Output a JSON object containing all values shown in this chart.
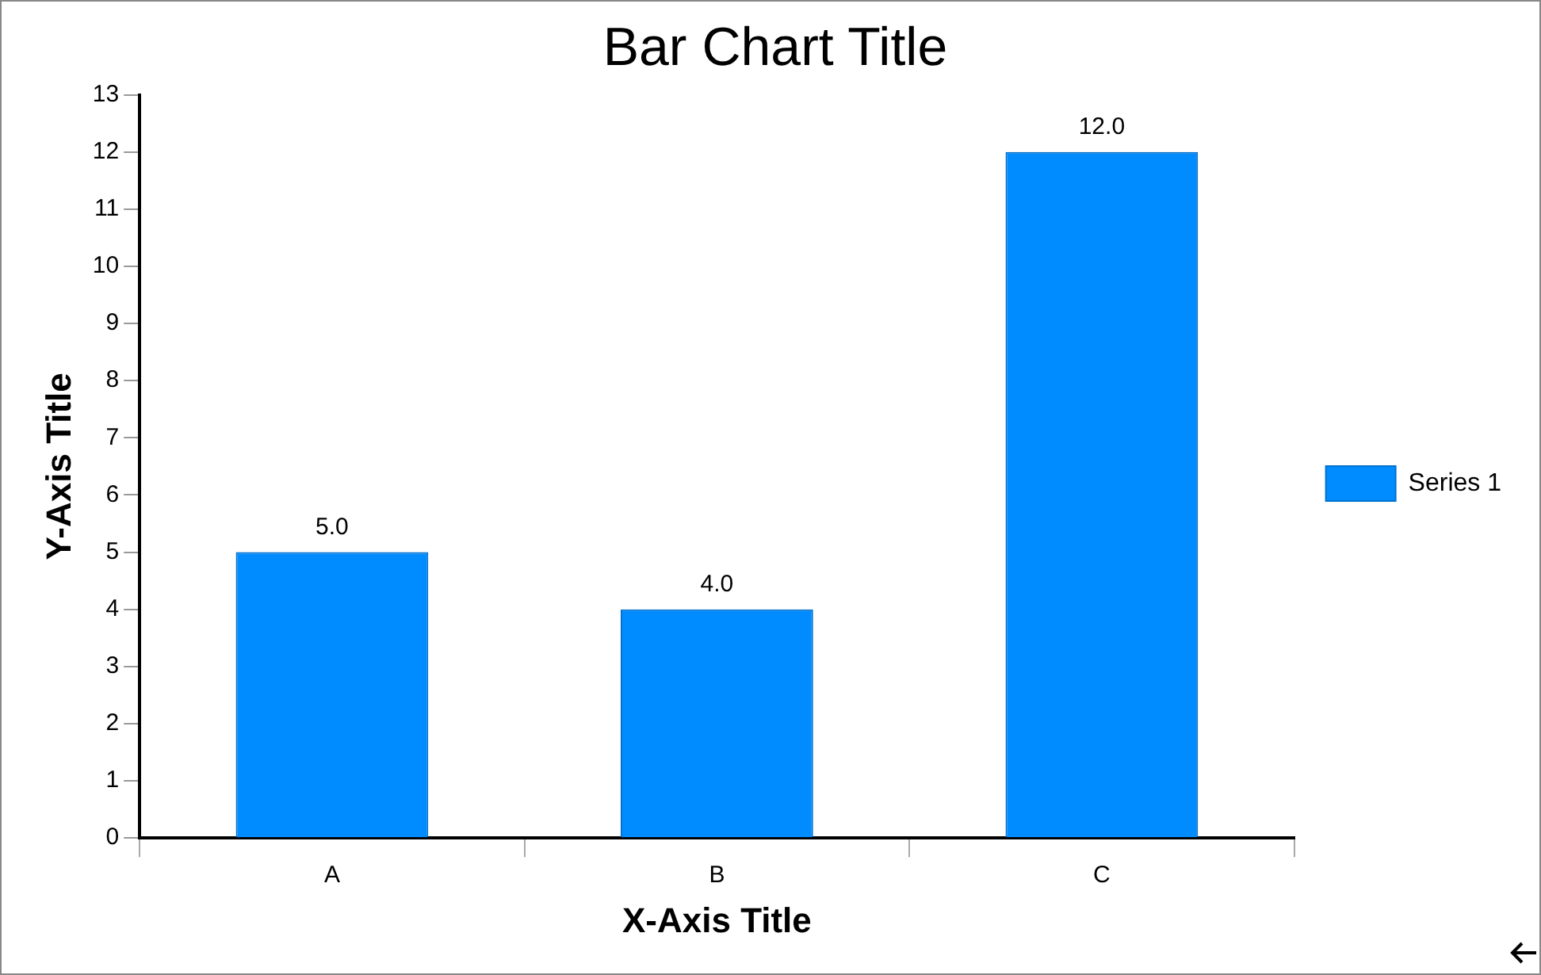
{
  "chart_data": {
    "type": "bar",
    "title": "Bar Chart Title",
    "xlabel": "X-Axis Title",
    "ylabel": "Y-Axis Title",
    "categories": [
      "A",
      "B",
      "C"
    ],
    "series": [
      {
        "name": "Series 1",
        "color": "#008cff",
        "values": [
          5,
          4,
          12
        ],
        "value_labels": [
          "5.0",
          "4.0",
          "12.0"
        ]
      }
    ],
    "ylim": [
      0,
      13
    ],
    "yticks": [
      0,
      1,
      2,
      3,
      4,
      5,
      6,
      7,
      8,
      9,
      10,
      11,
      12,
      13
    ],
    "grid": false,
    "legend": "right"
  }
}
